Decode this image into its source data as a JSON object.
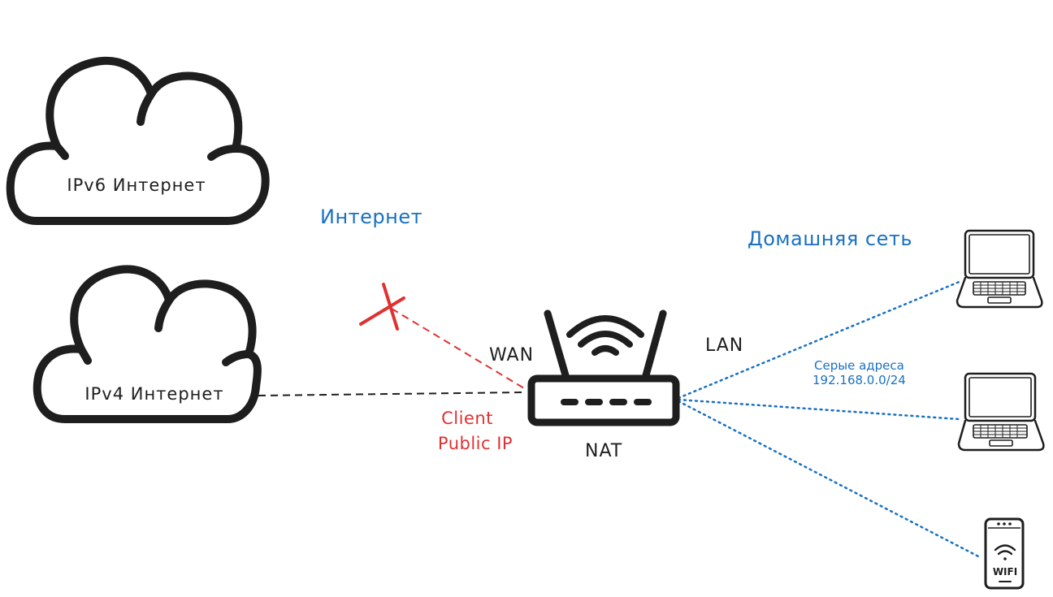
{
  "clouds": {
    "ipv6_label": "IPv6 Интернет",
    "ipv4_label": "IPv4 Интернет"
  },
  "zones": {
    "internet_label": "Интернет",
    "home_label": "Домашняя сеть"
  },
  "router": {
    "wan_label": "WAN",
    "lan_label": "LAN",
    "nat_label": "NAT",
    "client_label_line1": "Client",
    "client_label_line2": "Public IP"
  },
  "lan": {
    "gray_addresses_line1": "Серые адреса",
    "gray_addresses_line2": "192.168.0.0/24"
  },
  "devices": {
    "phone_badge": "WIFI"
  },
  "colors": {
    "stroke": "#1e1e1e",
    "blue": "#1971c2",
    "red": "#e03131"
  },
  "icons": [
    "cloud-icon",
    "cloud-icon",
    "router-icon",
    "laptop-icon",
    "laptop-icon",
    "smartphone-icon",
    "blocked-x-icon"
  ]
}
